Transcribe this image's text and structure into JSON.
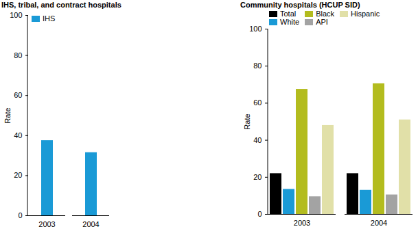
{
  "chart_data": [
    {
      "type": "bar",
      "title": "IHS, tribal, and contract hospitals",
      "categories": [
        "2003",
        "2004"
      ],
      "series": [
        {
          "name": "IHS",
          "color": "#1a9ad6",
          "values": [
            37.5,
            31.5
          ]
        }
      ],
      "y_label": "Rate",
      "ylim": [
        0,
        100
      ],
      "yticks": [
        0,
        20,
        40,
        60,
        80,
        100
      ],
      "legend": "top-left"
    },
    {
      "type": "bar",
      "title": "Community hospitals (HCUP SID)",
      "categories": [
        "2003",
        "2004"
      ],
      "series": [
        {
          "name": "Total",
          "color": "#000000",
          "values": [
            22,
            22
          ]
        },
        {
          "name": "White",
          "color": "#1a9ad6",
          "values": [
            13.5,
            13
          ]
        },
        {
          "name": "Black",
          "color": "#b3bc1e",
          "values": [
            67.5,
            70.5
          ]
        },
        {
          "name": "API",
          "color": "#a3a3a3",
          "values": [
            9.5,
            10.5
          ]
        },
        {
          "name": "Hispanic",
          "color": "#e1e0a8",
          "values": [
            48,
            51
          ]
        }
      ],
      "y_label": "Rate",
      "ylim": [
        0,
        100
      ],
      "yticks": [
        0,
        20,
        40,
        60,
        80,
        100
      ],
      "legend": "top-left"
    }
  ]
}
